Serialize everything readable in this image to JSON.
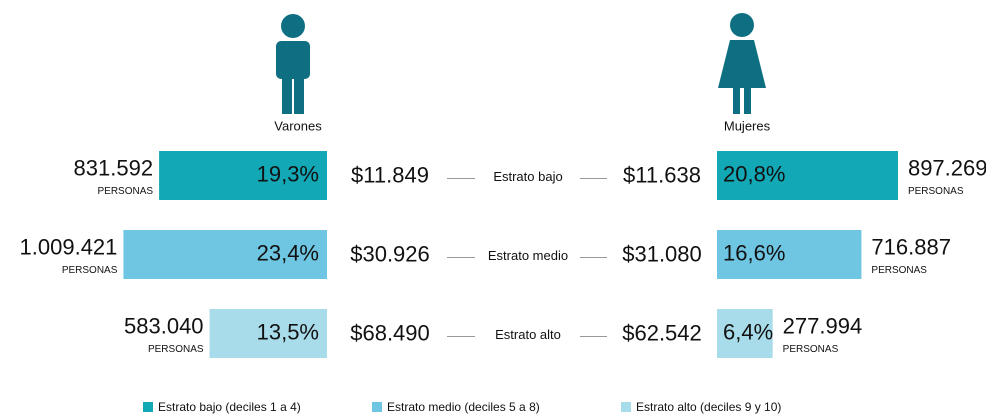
{
  "chart_data": {
    "type": "butterfly",
    "categories": [
      "Estrato bajo",
      "Estrato medio",
      "Estrato alto"
    ],
    "colors": [
      "#12a8b6",
      "#6ec6e2",
      "#a9dcea"
    ],
    "persons_unit": "PERSONAS",
    "series": [
      {
        "name": "Varones",
        "values": [
          19.3,
          23.4,
          13.5
        ],
        "value_labels": [
          "19,3%",
          "23,4%",
          "13,5%"
        ],
        "persons": [
          831592,
          1009421,
          583040
        ],
        "persons_labels": [
          "831.592",
          "1.009.421",
          "583.040"
        ],
        "income": [
          11849,
          30926,
          68490
        ],
        "income_labels": [
          "$11.849",
          "$30.926",
          "$68.490"
        ]
      },
      {
        "name": "Mujeres",
        "values": [
          20.8,
          16.6,
          6.4
        ],
        "value_labels": [
          "20,8%",
          "16,6%",
          "6,4%"
        ],
        "persons": [
          897269,
          716887,
          277994
        ],
        "persons_labels": [
          "897.269",
          "716.887",
          "277.994"
        ],
        "income": [
          11638,
          31080,
          62542
        ],
        "income_labels": [
          "$11.638",
          "$31.080",
          "$62.542"
        ]
      }
    ],
    "legend": [
      "Estrato bajo (deciles 1 a 4)",
      "Estrato medio (deciles 5 a 8)",
      "Estrato alto (deciles 9 y 10)"
    ]
  }
}
